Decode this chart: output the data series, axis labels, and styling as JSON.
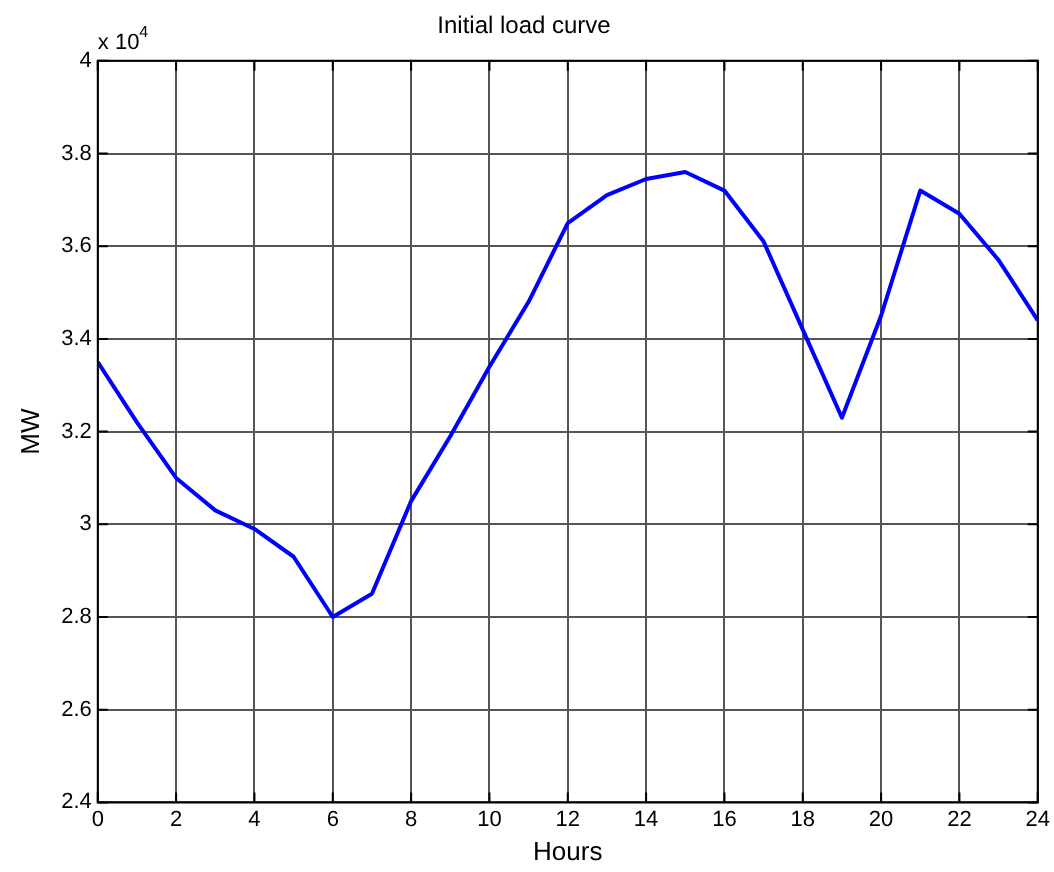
{
  "chart_data": {
    "type": "line",
    "title": "Initial load curve",
    "xlabel": "Hours",
    "ylabel": "MW",
    "annotations": [
      "x 10$^{4}$"
    ],
    "x": [
      0,
      1,
      2,
      3,
      4,
      5,
      6,
      7,
      8,
      9,
      10,
      11,
      12,
      13,
      14,
      15,
      16,
      17,
      18,
      19,
      20,
      21,
      22,
      23,
      24
    ],
    "series": [
      {
        "color": "#0000ff",
        "values": [
          3.35,
          3.22,
          3.1,
          3.03,
          2.99,
          2.93,
          2.8,
          2.85,
          3.05,
          3.19,
          3.34,
          3.48,
          3.65,
          3.71,
          3.745,
          3.76,
          3.72,
          3.61,
          3.42,
          3.23,
          3.45,
          3.72,
          3.67,
          3.57,
          3.44
        ]
      }
    ],
    "xlim": [
      0,
      24
    ],
    "xticks": [
      0,
      2,
      4,
      6,
      8,
      10,
      12,
      14,
      16,
      18,
      20,
      22,
      24
    ],
    "ylim": [
      2.4,
      4
    ],
    "yticks": [
      2.4,
      2.6,
      2.8,
      3,
      3.2,
      3.4,
      3.6,
      3.8,
      4
    ],
    "grid": true,
    "legend": false,
    "marker": "none",
    "line_style": "solid"
  }
}
